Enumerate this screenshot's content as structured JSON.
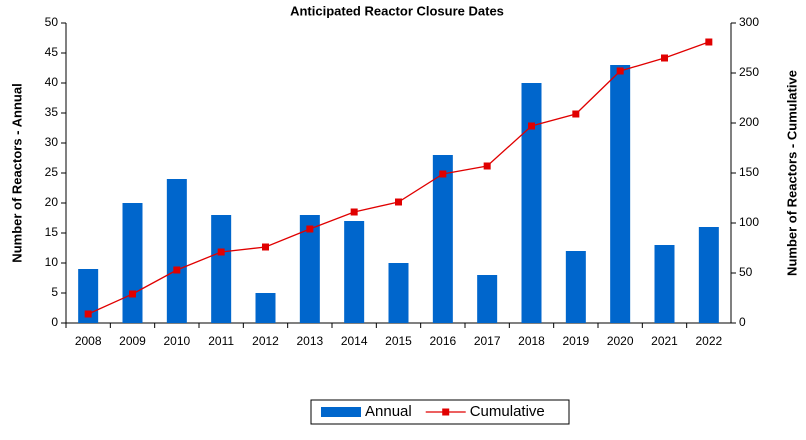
{
  "chart_data": {
    "type": "bar",
    "title": "Anticipated Reactor Closure Dates",
    "ylabel": "Number of Reactors - Annual",
    "y2label": "Number of Reactors - Cumulative",
    "categories": [
      "2008",
      "2009",
      "2010",
      "2011",
      "2012",
      "2013",
      "2014",
      "2015",
      "2016",
      "2017",
      "2018",
      "2019",
      "2020",
      "2021",
      "2022"
    ],
    "series": [
      {
        "name": "Annual",
        "type": "bar",
        "color": "#0066cc",
        "values": [
          9,
          20,
          24,
          18,
          5,
          18,
          17,
          10,
          28,
          8,
          40,
          12,
          43,
          13,
          16
        ]
      },
      {
        "name": "Cumulative",
        "type": "line",
        "axis": "y2",
        "color": "#e00000",
        "values": [
          9,
          29,
          53,
          71,
          76,
          94,
          111,
          121,
          149,
          157,
          197,
          209,
          252,
          265,
          281
        ]
      }
    ],
    "ylim": [
      0,
      50
    ],
    "yticks": [
      0,
      5,
      10,
      15,
      20,
      25,
      30,
      35,
      40,
      45,
      50
    ],
    "y2lim": [
      0,
      300
    ],
    "y2ticks": [
      0,
      50,
      100,
      150,
      200,
      250,
      300
    ],
    "grid": false,
    "legend": "bottom"
  }
}
